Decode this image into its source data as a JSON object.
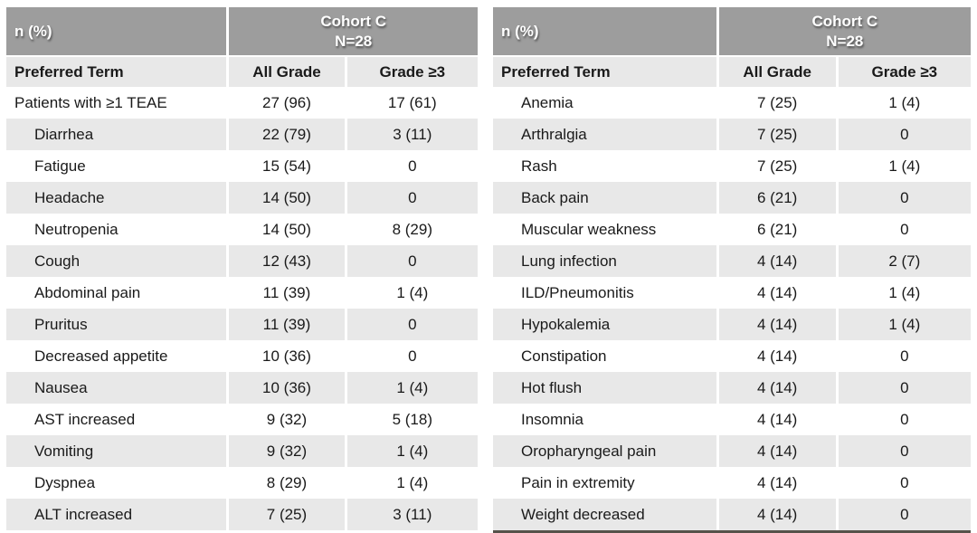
{
  "colors": {
    "header_bg": "#9d9d9d",
    "header_text": "#ffffff",
    "subheader_bg": "#e8e8e8",
    "row_bg": "#ffffff",
    "row_alt_bg": "#e8e8e8",
    "body_text": "#1a1a1a",
    "right_table_bottom_border": "#56524a"
  },
  "chart_data": [
    {
      "type": "table",
      "corner_label": "n (%)",
      "cohort_header": "Cohort C",
      "cohort_n": "N=28",
      "columns": [
        "Preferred Term",
        "All Grade",
        "Grade ≥3"
      ],
      "rows": [
        {
          "term": "Patients with ≥1 TEAE",
          "all_grade": "27 (96)",
          "grade_ge3": "17 (61)",
          "indent": false
        },
        {
          "term": "Diarrhea",
          "all_grade": "22 (79)",
          "grade_ge3": "3 (11)",
          "indent": true
        },
        {
          "term": "Fatigue",
          "all_grade": "15 (54)",
          "grade_ge3": "0",
          "indent": true
        },
        {
          "term": "Headache",
          "all_grade": "14 (50)",
          "grade_ge3": "0",
          "indent": true
        },
        {
          "term": "Neutropenia",
          "all_grade": "14 (50)",
          "grade_ge3": "8 (29)",
          "indent": true
        },
        {
          "term": "Cough",
          "all_grade": "12 (43)",
          "grade_ge3": "0",
          "indent": true
        },
        {
          "term": "Abdominal pain",
          "all_grade": "11 (39)",
          "grade_ge3": "1 (4)",
          "indent": true
        },
        {
          "term": "Pruritus",
          "all_grade": "11 (39)",
          "grade_ge3": "0",
          "indent": true
        },
        {
          "term": "Decreased appetite",
          "all_grade": "10 (36)",
          "grade_ge3": "0",
          "indent": true
        },
        {
          "term": "Nausea",
          "all_grade": "10 (36)",
          "grade_ge3": "1 (4)",
          "indent": true
        },
        {
          "term": "AST increased",
          "all_grade": "9 (32)",
          "grade_ge3": "5 (18)",
          "indent": true
        },
        {
          "term": "Vomiting",
          "all_grade": "9 (32)",
          "grade_ge3": "1 (4)",
          "indent": true
        },
        {
          "term": "Dyspnea",
          "all_grade": "8 (29)",
          "grade_ge3": "1 (4)",
          "indent": true
        },
        {
          "term": "ALT increased",
          "all_grade": "7 (25)",
          "grade_ge3": "3 (11)",
          "indent": true
        }
      ]
    },
    {
      "type": "table",
      "corner_label": "n (%)",
      "cohort_header": "Cohort C",
      "cohort_n": "N=28",
      "columns": [
        "Preferred Term",
        "All Grade",
        "Grade ≥3"
      ],
      "rows": [
        {
          "term": "Anemia",
          "all_grade": "7 (25)",
          "grade_ge3": "1 (4)",
          "indent": true
        },
        {
          "term": "Arthralgia",
          "all_grade": "7 (25)",
          "grade_ge3": "0",
          "indent": true
        },
        {
          "term": "Rash",
          "all_grade": "7 (25)",
          "grade_ge3": "1 (4)",
          "indent": true
        },
        {
          "term": "Back pain",
          "all_grade": "6 (21)",
          "grade_ge3": "0",
          "indent": true
        },
        {
          "term": "Muscular weakness",
          "all_grade": "6 (21)",
          "grade_ge3": "0",
          "indent": true
        },
        {
          "term": "Lung infection",
          "all_grade": "4 (14)",
          "grade_ge3": "2 (7)",
          "indent": true
        },
        {
          "term": "ILD/Pneumonitis",
          "all_grade": "4 (14)",
          "grade_ge3": "1 (4)",
          "indent": true
        },
        {
          "term": "Hypokalemia",
          "all_grade": "4 (14)",
          "grade_ge3": "1 (4)",
          "indent": true
        },
        {
          "term": "Constipation",
          "all_grade": "4 (14)",
          "grade_ge3": "0",
          "indent": true
        },
        {
          "term": "Hot flush",
          "all_grade": "4 (14)",
          "grade_ge3": "0",
          "indent": true
        },
        {
          "term": "Insomnia",
          "all_grade": "4 (14)",
          "grade_ge3": "0",
          "indent": true
        },
        {
          "term": "Oropharyngeal pain",
          "all_grade": "4 (14)",
          "grade_ge3": "0",
          "indent": true
        },
        {
          "term": "Pain in extremity",
          "all_grade": "4 (14)",
          "grade_ge3": "0",
          "indent": true
        },
        {
          "term": "Weight decreased",
          "all_grade": "4 (14)",
          "grade_ge3": "0",
          "indent": true
        }
      ]
    }
  ]
}
